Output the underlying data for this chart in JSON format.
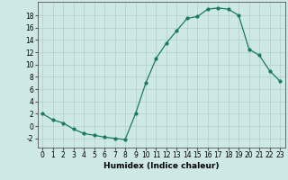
{
  "x": [
    0,
    1,
    2,
    3,
    4,
    5,
    6,
    7,
    8,
    9,
    10,
    11,
    12,
    13,
    14,
    15,
    16,
    17,
    18,
    19,
    20,
    21,
    22,
    23
  ],
  "y": [
    2,
    1,
    0.5,
    -0.5,
    -1.2,
    -1.5,
    -1.8,
    -2.0,
    -2.2,
    2.0,
    7.0,
    11.0,
    13.5,
    15.5,
    17.5,
    17.8,
    19.0,
    19.2,
    19.0,
    18.0,
    12.5,
    11.5,
    9.0,
    7.3
  ],
  "title": "",
  "xlabel": "Humidex (Indice chaleur)",
  "ylabel": "",
  "xlim": [
    -0.5,
    23.5
  ],
  "ylim": [
    -3.5,
    20.2
  ],
  "yticks": [
    -2,
    0,
    2,
    4,
    6,
    8,
    10,
    12,
    14,
    16,
    18
  ],
  "xticks": [
    0,
    1,
    2,
    3,
    4,
    5,
    6,
    7,
    8,
    9,
    10,
    11,
    12,
    13,
    14,
    15,
    16,
    17,
    18,
    19,
    20,
    21,
    22,
    23
  ],
  "line_color": "#1a7a5e",
  "marker": "o",
  "marker_size": 2.0,
  "bg_color": "#cde8e5",
  "grid_color": "#b0d0cc",
  "label_fontsize": 6.5,
  "tick_fontsize": 5.5
}
